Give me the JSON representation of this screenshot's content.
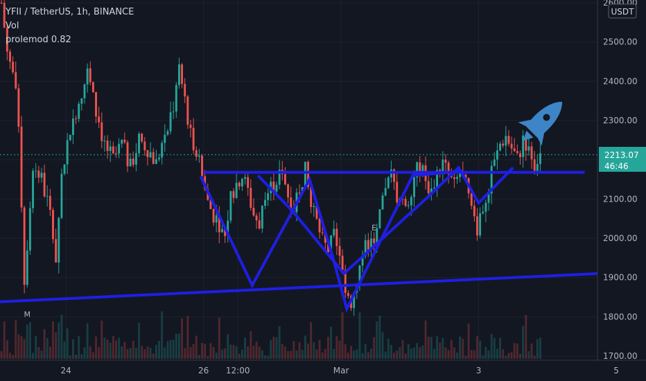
{
  "legend": {
    "title": "YFII / TetherUS, 1h, BINANCE",
    "vol": "Vol",
    "indicator": "prolemod 0.82"
  },
  "currency": "USDT",
  "last_price": "2213.07",
  "countdown": "46:46",
  "colors": {
    "background": "#131722",
    "up": "#26a69a",
    "down": "#ef5350",
    "drawing": "#1f1fe6",
    "rocket": "#3d85c6",
    "price_badge": "#26a69a"
  },
  "chart_data": {
    "type": "candlestick",
    "symbol": "YFII / TetherUS",
    "interval": "1h",
    "exchange": "BINANCE",
    "ylim": [
      1700,
      2600
    ],
    "y_ticks": [
      {
        "label": "2600.00",
        "value": 2600
      },
      {
        "label": "2500.00",
        "value": 2500
      },
      {
        "label": "2400.00",
        "value": 2400
      },
      {
        "label": "2300.00",
        "value": 2300
      },
      {
        "label": "2200.00",
        "value": 2200
      },
      {
        "label": "2100.00",
        "value": 2100
      },
      {
        "label": "2000.00",
        "value": 2000
      },
      {
        "label": "1900.00",
        "value": 1900
      },
      {
        "label": "1800.00",
        "value": 1800
      },
      {
        "label": "1700.00",
        "value": 1700
      }
    ],
    "x_ticks": [
      {
        "label": "24",
        "hour": 23
      },
      {
        "label": "26",
        "hour": 71
      },
      {
        "label": "12:00",
        "hour": 83
      },
      {
        "label": "Mar",
        "hour": 119
      },
      {
        "label": "3",
        "hour": 167
      },
      {
        "label": "5",
        "hour": 215
      }
    ],
    "x_range": [
      0,
      240
    ],
    "grid": true,
    "price_path": [
      [
        0,
        2600
      ],
      [
        2,
        2480
      ],
      [
        4,
        2420
      ],
      [
        6,
        2300
      ],
      [
        8,
        1890
      ],
      [
        11,
        2190
      ],
      [
        14,
        2150
      ],
      [
        17,
        2060
      ],
      [
        19,
        1950
      ],
      [
        21,
        2160
      ],
      [
        24,
        2280
      ],
      [
        27,
        2350
      ],
      [
        30,
        2420
      ],
      [
        33,
        2320
      ],
      [
        36,
        2240
      ],
      [
        39,
        2200
      ],
      [
        42,
        2240
      ],
      [
        45,
        2180
      ],
      [
        48,
        2250
      ],
      [
        51,
        2230
      ],
      [
        54,
        2190
      ],
      [
        57,
        2270
      ],
      [
        60,
        2340
      ],
      [
        62,
        2420
      ],
      [
        64,
        2360
      ],
      [
        66,
        2260
      ],
      [
        68,
        2230
      ],
      [
        70,
        2160
      ],
      [
        72,
        2090
      ],
      [
        74,
        2060
      ],
      [
        76,
        2040
      ],
      [
        78,
        2000
      ],
      [
        80,
        2110
      ],
      [
        82,
        2140
      ],
      [
        84,
        2160
      ],
      [
        86,
        2120
      ],
      [
        88,
        2060
      ],
      [
        90,
        2040
      ],
      [
        92,
        2100
      ],
      [
        94,
        2130
      ],
      [
        96,
        2150
      ],
      [
        98,
        2180
      ],
      [
        100,
        2110
      ],
      [
        102,
        2080
      ],
      [
        104,
        2140
      ],
      [
        106,
        2170
      ],
      [
        108,
        2080
      ],
      [
        110,
        2040
      ],
      [
        112,
        1990
      ],
      [
        114,
        1970
      ],
      [
        116,
        2000
      ],
      [
        118,
        1940
      ],
      [
        120,
        1880
      ],
      [
        122,
        1840
      ],
      [
        124,
        1900
      ],
      [
        126,
        1960
      ],
      [
        128,
        1990
      ],
      [
        130,
        1980
      ],
      [
        132,
        2050
      ],
      [
        134,
        2120
      ],
      [
        136,
        2160
      ],
      [
        138,
        2110
      ],
      [
        140,
        2080
      ],
      [
        142,
        2100
      ],
      [
        144,
        2160
      ],
      [
        146,
        2180
      ],
      [
        148,
        2150
      ],
      [
        150,
        2120
      ],
      [
        152,
        2170
      ],
      [
        154,
        2190
      ],
      [
        156,
        2160
      ],
      [
        158,
        2130
      ],
      [
        160,
        2170
      ],
      [
        162,
        2130
      ],
      [
        164,
        2070
      ],
      [
        166,
        2030
      ],
      [
        168,
        2080
      ],
      [
        170,
        2130
      ],
      [
        172,
        2190
      ],
      [
        174,
        2240
      ],
      [
        176,
        2260
      ],
      [
        178,
        2230
      ],
      [
        180,
        2200
      ],
      [
        182,
        2250
      ],
      [
        184,
        2240
      ],
      [
        186,
        2190
      ],
      [
        188,
        2213
      ]
    ],
    "markers": [
      {
        "label": "M",
        "hour": 9,
        "value": 1800
      },
      {
        "label": "E",
        "hour": 130,
        "value": 2020
      }
    ],
    "drawings": [
      {
        "name": "support-trendline",
        "points": [
          [
            -1,
            1838
          ],
          [
            252,
            1925
          ]
        ]
      },
      {
        "name": "neckline",
        "points": [
          [
            71,
            2168
          ],
          [
            204,
            2168
          ]
        ]
      },
      {
        "name": "zigzag-left",
        "points": [
          [
            70,
            2158
          ],
          [
            88,
            1880
          ],
          [
            108,
            2150
          ],
          [
            116,
            1955
          ],
          [
            121,
            1820
          ],
          [
            144,
            2160
          ],
          [
            160,
            2170
          ]
        ]
      },
      {
        "name": "zigzag-right",
        "points": [
          [
            90,
            2160
          ],
          [
            102,
            2070
          ],
          [
            120,
            1910
          ],
          [
            150,
            2110
          ],
          [
            160,
            2180
          ],
          [
            167,
            2090
          ],
          [
            179,
            2180
          ]
        ]
      }
    ]
  }
}
